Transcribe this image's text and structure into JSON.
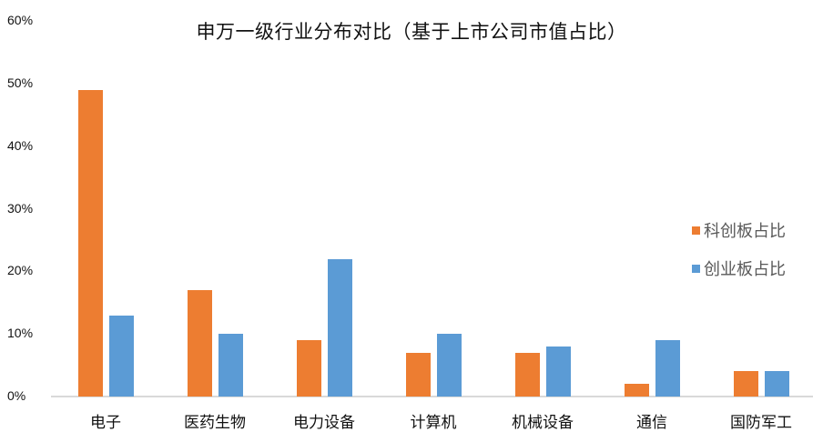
{
  "chart_data": {
    "type": "bar",
    "title": "申万一级行业分布对比（基于上市公司市值占比）",
    "xlabel": "",
    "ylabel": "",
    "categories": [
      "电子",
      "医药生物",
      "电力设备",
      "计算机",
      "机械设备",
      "通信",
      "国防军工"
    ],
    "series": [
      {
        "name": "科创板占比",
        "color": "#ED7D31",
        "values": [
          49,
          17,
          9,
          7,
          7,
          2,
          4
        ]
      },
      {
        "name": "创业板占比",
        "color": "#5B9BD5",
        "values": [
          13,
          10,
          22,
          10,
          8,
          9,
          4
        ]
      }
    ],
    "ylim": [
      0,
      60
    ],
    "yticks": [
      "0%",
      "10%",
      "20%",
      "30%",
      "40%",
      "50%",
      "60%"
    ],
    "unit": "%",
    "grid": false,
    "legend_position": "right"
  }
}
